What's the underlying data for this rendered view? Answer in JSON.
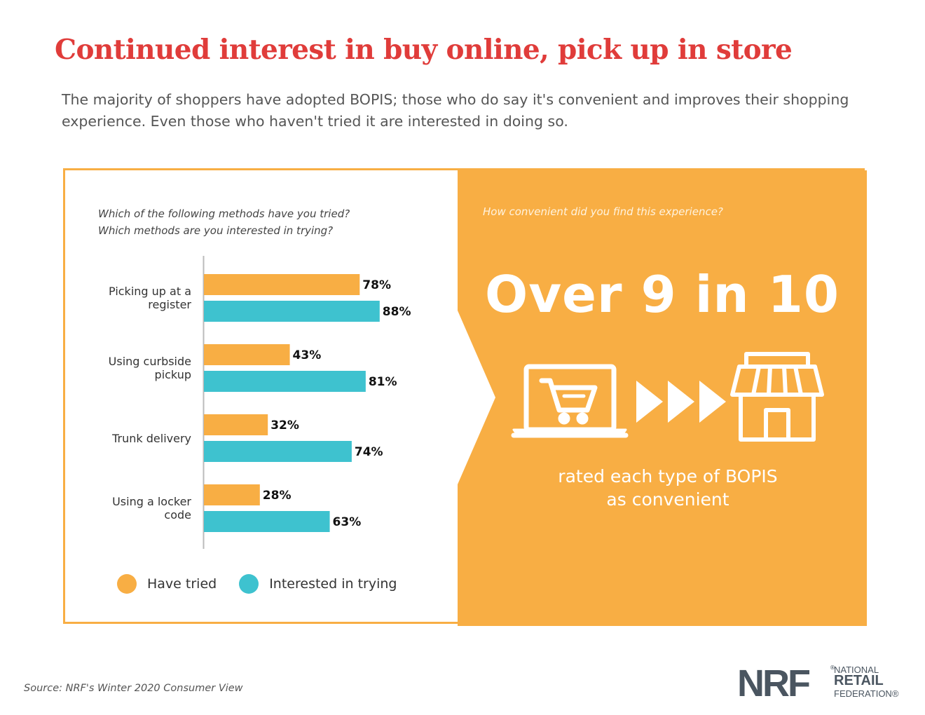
{
  "title": "Continued interest in buy online, pick up in store",
  "subtitle": "The majority of shoppers have adopted BOPIS; those who do say it's convenient and improves their shopping experience. Even those who haven't tried it are interested in doing so.",
  "left_panel": {
    "question_1": "Which of the following methods have you tried?",
    "question_2": "Which methods are you interested in trying?"
  },
  "right_panel": {
    "question": "How convenient did you find this experience?",
    "big_stat": "Over 9 in 10",
    "caption_line1": "rated each type of BOPIS",
    "caption_line2": "as convenient",
    "icons": [
      "laptop-cart-icon",
      "arrows-icon",
      "store-icon"
    ]
  },
  "chart_data": {
    "type": "bar",
    "orientation": "horizontal",
    "categories": [
      [
        "Picking up at a",
        "register"
      ],
      [
        "Using curbside",
        "pickup"
      ],
      [
        "Trunk delivery"
      ],
      [
        "Using a locker",
        "code"
      ]
    ],
    "series": [
      {
        "name": "Have tried",
        "values": [
          78,
          43,
          32,
          28
        ],
        "color": "#f8ae44"
      },
      {
        "name": "Interested in trying",
        "values": [
          88,
          81,
          74,
          63
        ],
        "color": "#3ec2cf"
      }
    ],
    "value_suffix": "%",
    "xlim": [
      0,
      100
    ],
    "legend_position": "bottom"
  },
  "source": "Source: NRF's Winter 2020 Consumer View",
  "logo": {
    "mark": "NRF",
    "reg": "®",
    "line1": "NATIONAL",
    "line2": "RETAIL",
    "line3": "FEDERATION®"
  },
  "colors": {
    "title": "#e03c3a",
    "orange": "#f8ae44",
    "teal": "#3ec2cf",
    "logo": "#4a5560"
  }
}
